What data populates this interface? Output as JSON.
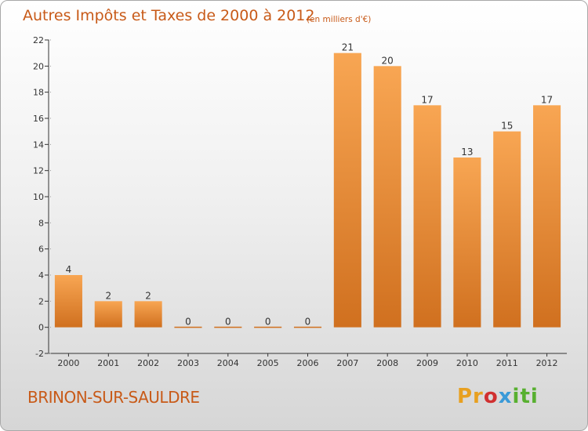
{
  "header": {
    "title": "Autres Impôts et Taxes de 2000 à 2012",
    "unit": "(en milliers d'€)"
  },
  "footer": {
    "commune": "BRINON-SUR-SAULDRE",
    "logo": [
      "Pr",
      "o",
      "x",
      "iti"
    ]
  },
  "colors": {
    "bar_top": "#f8a653",
    "bar_bottom": "#d0701f",
    "title": "#c85a18",
    "axis": "#333333"
  },
  "chart_data": {
    "type": "bar",
    "title": "Autres Impôts et Taxes de 2000 à 2012",
    "subtitle": "(en milliers d'€)",
    "categories": [
      "2000",
      "2001",
      "2002",
      "2003",
      "2004",
      "2005",
      "2006",
      "2007",
      "2008",
      "2009",
      "2010",
      "2011",
      "2012"
    ],
    "values": [
      4,
      2,
      2,
      0,
      0,
      0,
      0,
      21,
      20,
      17,
      13,
      15,
      17
    ],
    "ylim": [
      -2,
      22
    ],
    "yticks": [
      -2,
      0,
      2,
      4,
      6,
      8,
      10,
      12,
      14,
      16,
      18,
      20,
      22
    ],
    "xlabel": "",
    "ylabel": "",
    "grid": false,
    "legend": "none",
    "data_labels": true
  }
}
